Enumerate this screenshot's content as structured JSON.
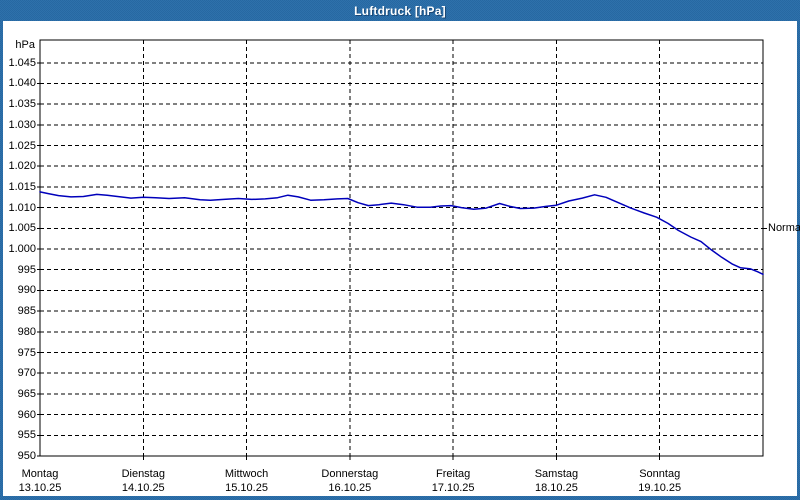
{
  "window": {
    "title": "Luftdruck [hPa]",
    "titlebar_color": "#2768a2",
    "background_color": "#ffffff"
  },
  "chart_data": {
    "type": "line",
    "title": "Luftdruck [hPa]",
    "grid": "dashed-black",
    "legend_position": "none",
    "y_axis": {
      "unit": "hPa",
      "min": 950,
      "max": 1050.5,
      "tick_step": 5,
      "ticks": [
        {
          "value": 1045,
          "label": "1.045"
        },
        {
          "value": 1040,
          "label": "1.040"
        },
        {
          "value": 1035,
          "label": "1.035"
        },
        {
          "value": 1030,
          "label": "1.030"
        },
        {
          "value": 1025,
          "label": "1.025"
        },
        {
          "value": 1020,
          "label": "1.020"
        },
        {
          "value": 1015,
          "label": "1.015"
        },
        {
          "value": 1010,
          "label": "1.010"
        },
        {
          "value": 1005,
          "label": "1.005"
        },
        {
          "value": 1000,
          "label": "1.000"
        },
        {
          "value": 995,
          "label": "995"
        },
        {
          "value": 990,
          "label": "990"
        },
        {
          "value": 985,
          "label": "985"
        },
        {
          "value": 980,
          "label": "980"
        },
        {
          "value": 975,
          "label": "975"
        },
        {
          "value": 970,
          "label": "970"
        },
        {
          "value": 965,
          "label": "965"
        },
        {
          "value": 960,
          "label": "960"
        },
        {
          "value": 955,
          "label": "955"
        },
        {
          "value": 950,
          "label": "950"
        }
      ]
    },
    "x_axis": {
      "days": [
        {
          "name": "Montag",
          "date": "13.10.25"
        },
        {
          "name": "Dienstag",
          "date": "14.10.25"
        },
        {
          "name": "Mittwoch",
          "date": "15.10.25"
        },
        {
          "name": "Donnerstag",
          "date": "16.10.25"
        },
        {
          "name": "Freitag",
          "date": "17.10.25"
        },
        {
          "name": "Samstag",
          "date": "18.10.25"
        },
        {
          "name": "Sonntag",
          "date": "19.10.25"
        }
      ]
    },
    "normal_marker": {
      "label": "Normal",
      "value_hpa": 1005
    },
    "series": [
      {
        "name": "Luftdruck",
        "color": "#0000bb",
        "points_day_hpa": [
          [
            0.0,
            1013.8
          ],
          [
            0.08,
            1013.4
          ],
          [
            0.18,
            1012.9
          ],
          [
            0.3,
            1012.6
          ],
          [
            0.42,
            1012.7
          ],
          [
            0.55,
            1013.2
          ],
          [
            0.65,
            1013.0
          ],
          [
            0.78,
            1012.6
          ],
          [
            0.88,
            1012.3
          ],
          [
            1.0,
            1012.5
          ],
          [
            1.12,
            1012.4
          ],
          [
            1.25,
            1012.2
          ],
          [
            1.4,
            1012.4
          ],
          [
            1.55,
            1011.9
          ],
          [
            1.65,
            1011.8
          ],
          [
            1.78,
            1012.0
          ],
          [
            1.92,
            1012.2
          ],
          [
            2.05,
            1012.0
          ],
          [
            2.18,
            1012.1
          ],
          [
            2.3,
            1012.4
          ],
          [
            2.4,
            1013.0
          ],
          [
            2.5,
            1012.6
          ],
          [
            2.62,
            1011.8
          ],
          [
            2.75,
            1011.9
          ],
          [
            2.88,
            1012.1
          ],
          [
            2.98,
            1012.2
          ],
          [
            3.08,
            1011.2
          ],
          [
            3.18,
            1010.5
          ],
          [
            3.28,
            1010.7
          ],
          [
            3.4,
            1011.1
          ],
          [
            3.52,
            1010.7
          ],
          [
            3.65,
            1010.1
          ],
          [
            3.78,
            1010.1
          ],
          [
            3.88,
            1010.4
          ],
          [
            3.98,
            1010.5
          ],
          [
            4.08,
            1010.0
          ],
          [
            4.2,
            1009.6
          ],
          [
            4.32,
            1009.9
          ],
          [
            4.45,
            1011.0
          ],
          [
            4.55,
            1010.3
          ],
          [
            4.65,
            1009.8
          ],
          [
            4.78,
            1009.9
          ],
          [
            4.9,
            1010.3
          ],
          [
            5.0,
            1010.6
          ],
          [
            5.12,
            1011.6
          ],
          [
            5.25,
            1012.3
          ],
          [
            5.37,
            1013.1
          ],
          [
            5.48,
            1012.5
          ],
          [
            5.6,
            1011.2
          ],
          [
            5.72,
            1009.9
          ],
          [
            5.85,
            1008.7
          ],
          [
            5.97,
            1007.7
          ],
          [
            6.08,
            1006.2
          ],
          [
            6.18,
            1004.5
          ],
          [
            6.3,
            1002.9
          ],
          [
            6.4,
            1001.8
          ],
          [
            6.5,
            999.8
          ],
          [
            6.6,
            998.0
          ],
          [
            6.7,
            996.4
          ],
          [
            6.78,
            995.5
          ],
          [
            6.88,
            995.2
          ],
          [
            6.95,
            994.5
          ],
          [
            7.0,
            993.9
          ]
        ]
      }
    ]
  }
}
